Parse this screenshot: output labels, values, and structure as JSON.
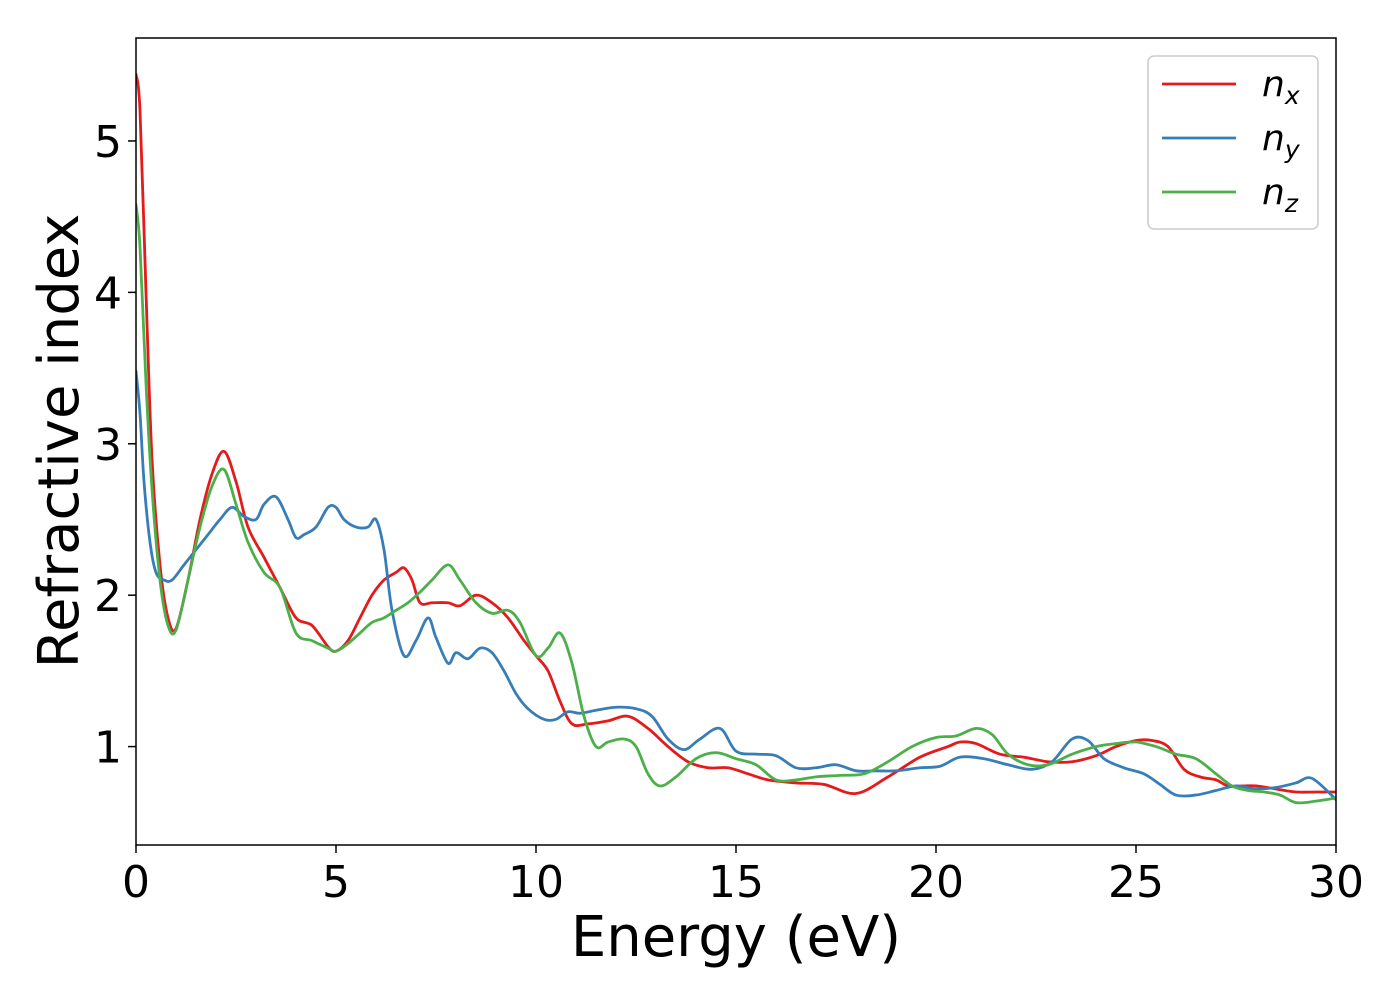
{
  "chart_data": {
    "type": "line",
    "title": "",
    "xlabel": "Energy (eV)",
    "ylabel": "Refractive index",
    "xlim": [
      0,
      30
    ],
    "ylim": [
      0.35,
      5.68
    ],
    "xticks": [
      0,
      5,
      10,
      15,
      20,
      25,
      30
    ],
    "xtick_labels": [
      "0",
      "5",
      "10",
      "15",
      "20",
      "25",
      "30"
    ],
    "yticks": [
      1,
      2,
      3,
      4,
      5
    ],
    "ytick_labels": [
      "1",
      "2",
      "3",
      "4",
      "5"
    ],
    "grid": false,
    "legend_position": "top-right",
    "series": [
      {
        "name": "n_x",
        "legend_base": "n",
        "legend_sub": "x",
        "color": "#e41a1c",
        "x": [
          0,
          0.1,
          0.25,
          0.4,
          0.6,
          0.8,
          1.0,
          1.3,
          1.6,
          1.9,
          2.2,
          2.5,
          2.8,
          3.2,
          3.6,
          4.0,
          4.4,
          4.8,
          5.0,
          5.3,
          5.6,
          5.9,
          6.2,
          6.5,
          6.7,
          6.9,
          7.1,
          7.4,
          7.8,
          8.1,
          8.5,
          8.9,
          9.3,
          9.7,
          10.0,
          10.3,
          10.6,
          10.9,
          11.3,
          11.8,
          12.3,
          12.8,
          13.3,
          13.8,
          14.3,
          14.8,
          15.3,
          15.8,
          16.5,
          17.2,
          18.0,
          18.8,
          19.6,
          20.3,
          20.6,
          21.0,
          21.6,
          22.2,
          22.8,
          23.4,
          24.0,
          24.5,
          25.0,
          25.4,
          25.8,
          26.2,
          26.6,
          27.0,
          27.3,
          27.7,
          28.0,
          28.5,
          29.0,
          29.5,
          30.0
        ],
        "y": [
          5.44,
          5.2,
          4.0,
          2.9,
          2.2,
          1.85,
          1.78,
          2.1,
          2.5,
          2.8,
          2.95,
          2.75,
          2.45,
          2.25,
          2.05,
          1.85,
          1.8,
          1.66,
          1.63,
          1.7,
          1.85,
          2.0,
          2.1,
          2.15,
          2.18,
          2.1,
          1.95,
          1.95,
          1.95,
          1.93,
          2.0,
          1.95,
          1.85,
          1.7,
          1.6,
          1.5,
          1.3,
          1.15,
          1.15,
          1.17,
          1.2,
          1.12,
          1.0,
          0.9,
          0.86,
          0.86,
          0.82,
          0.78,
          0.76,
          0.75,
          0.69,
          0.8,
          0.93,
          1.0,
          1.03,
          1.02,
          0.95,
          0.93,
          0.9,
          0.9,
          0.94,
          1.0,
          1.04,
          1.04,
          1.0,
          0.85,
          0.8,
          0.78,
          0.74,
          0.74,
          0.74,
          0.72,
          0.7,
          0.7,
          0.7
        ]
      },
      {
        "name": "n_y",
        "legend_base": "n",
        "legend_sub": "y",
        "color": "#377eb8",
        "x": [
          0,
          0.1,
          0.2,
          0.35,
          0.5,
          0.7,
          0.9,
          1.2,
          1.5,
          1.8,
          2.1,
          2.4,
          2.7,
          3.0,
          3.2,
          3.5,
          3.8,
          4.0,
          4.2,
          4.5,
          4.8,
          5.0,
          5.2,
          5.5,
          5.8,
          6.0,
          6.2,
          6.4,
          6.7,
          7.0,
          7.3,
          7.5,
          7.8,
          8.0,
          8.3,
          8.6,
          8.9,
          9.2,
          9.5,
          9.8,
          10.2,
          10.5,
          10.8,
          11.1,
          11.5,
          12.0,
          12.5,
          12.9,
          13.3,
          13.7,
          14.1,
          14.6,
          15.0,
          15.5,
          16.0,
          16.5,
          17.0,
          17.5,
          18.0,
          18.5,
          19.0,
          19.6,
          20.1,
          20.6,
          21.2,
          21.8,
          22.4,
          22.9,
          23.4,
          23.8,
          24.2,
          24.7,
          25.2,
          25.6,
          26.0,
          26.5,
          27.0,
          27.5,
          28.0,
          28.5,
          29.0,
          29.4,
          30.0
        ],
        "y": [
          3.48,
          3.2,
          2.75,
          2.35,
          2.15,
          2.1,
          2.1,
          2.2,
          2.3,
          2.4,
          2.5,
          2.58,
          2.52,
          2.5,
          2.6,
          2.65,
          2.5,
          2.38,
          2.4,
          2.45,
          2.58,
          2.58,
          2.5,
          2.45,
          2.45,
          2.5,
          2.3,
          1.9,
          1.6,
          1.7,
          1.85,
          1.72,
          1.55,
          1.62,
          1.58,
          1.65,
          1.62,
          1.5,
          1.35,
          1.25,
          1.18,
          1.18,
          1.23,
          1.22,
          1.24,
          1.26,
          1.25,
          1.2,
          1.05,
          0.98,
          1.05,
          1.12,
          0.97,
          0.95,
          0.94,
          0.86,
          0.86,
          0.88,
          0.84,
          0.84,
          0.84,
          0.86,
          0.87,
          0.93,
          0.92,
          0.88,
          0.85,
          0.9,
          1.05,
          1.04,
          0.92,
          0.86,
          0.82,
          0.75,
          0.68,
          0.68,
          0.71,
          0.74,
          0.72,
          0.73,
          0.76,
          0.79,
          0.65
        ]
      },
      {
        "name": "n_z",
        "legend_base": "n",
        "legend_sub": "z",
        "color": "#4daf4a",
        "x": [
          0,
          0.1,
          0.25,
          0.4,
          0.6,
          0.8,
          1.0,
          1.3,
          1.6,
          1.9,
          2.2,
          2.5,
          2.8,
          3.2,
          3.6,
          4.0,
          4.4,
          4.8,
          5.0,
          5.3,
          5.6,
          5.9,
          6.2,
          6.5,
          6.8,
          7.1,
          7.4,
          7.8,
          8.1,
          8.5,
          8.9,
          9.3,
          9.6,
          10.0,
          10.3,
          10.6,
          10.9,
          11.2,
          11.5,
          11.8,
          12.2,
          12.5,
          12.8,
          13.1,
          13.5,
          14.0,
          14.5,
          15.0,
          15.5,
          16.0,
          16.5,
          17.0,
          17.6,
          18.2,
          18.8,
          19.4,
          20.0,
          20.5,
          21.0,
          21.4,
          21.8,
          22.3,
          22.8,
          23.4,
          24.0,
          24.5,
          25.0,
          25.5,
          26.0,
          26.5,
          27.0,
          27.4,
          27.8,
          28.2,
          28.6,
          29.0,
          29.5,
          30.0
        ],
        "y": [
          4.58,
          4.3,
          3.4,
          2.7,
          2.1,
          1.8,
          1.77,
          2.1,
          2.45,
          2.72,
          2.83,
          2.6,
          2.35,
          2.15,
          2.05,
          1.75,
          1.7,
          1.65,
          1.63,
          1.68,
          1.75,
          1.82,
          1.85,
          1.9,
          1.95,
          2.02,
          2.1,
          2.2,
          2.1,
          1.95,
          1.88,
          1.9,
          1.82,
          1.6,
          1.65,
          1.75,
          1.55,
          1.2,
          1.0,
          1.03,
          1.05,
          1.0,
          0.82,
          0.74,
          0.8,
          0.92,
          0.96,
          0.92,
          0.88,
          0.78,
          0.78,
          0.8,
          0.81,
          0.82,
          0.9,
          1.0,
          1.06,
          1.07,
          1.12,
          1.08,
          0.95,
          0.88,
          0.88,
          0.95,
          1.0,
          1.02,
          1.03,
          1.0,
          0.95,
          0.92,
          0.82,
          0.74,
          0.71,
          0.7,
          0.68,
          0.63,
          0.64,
          0.66
        ]
      }
    ]
  }
}
